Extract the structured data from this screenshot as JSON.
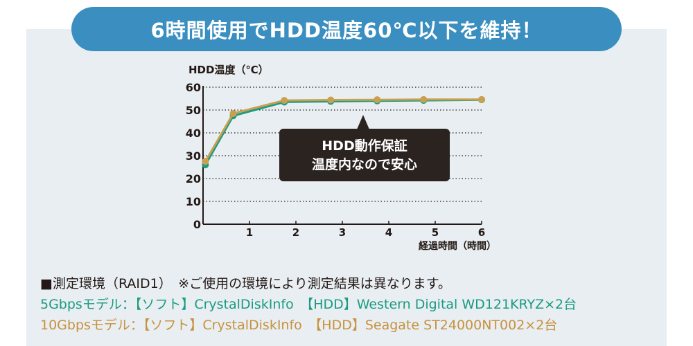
{
  "banner": {
    "title": "6時間使用でHDD温度60℃以下を維持！"
  },
  "callout": {
    "line1": "HDD動作保証",
    "line2": "温度内なので安心"
  },
  "colors": {
    "banner_bg": "#3a8fc0",
    "panel_bg": "#e8eef1",
    "series_5g": "#1a9b82",
    "series_10g": "#c8a050",
    "callout_bg": "#2b2320"
  },
  "chart_data": {
    "type": "line",
    "ylabel": "HDD温度（℃）",
    "xlabel": "経過時間（時間）",
    "ylim": [
      0,
      60
    ],
    "xlim": [
      0,
      6
    ],
    "yticks": [
      0,
      10,
      20,
      30,
      40,
      50,
      60
    ],
    "xticks": [
      1,
      2,
      3,
      4,
      5,
      6
    ],
    "grid": "horizontal-dotted",
    "legend": "none",
    "series": [
      {
        "color": "#1a9b82",
        "x": [
          0.05,
          0.65,
          1.75,
          2.75,
          3.75,
          4.75,
          6
        ],
        "y": [
          26,
          47.5,
          53.5,
          53.8,
          54,
          54.2,
          54.5
        ]
      },
      {
        "color": "#c8a050",
        "x": [
          0.05,
          0.65,
          1.75,
          2.75,
          3.75,
          4.75,
          6
        ],
        "y": [
          27.5,
          48.5,
          54.2,
          54.4,
          54.5,
          54.6,
          54.6
        ]
      }
    ]
  },
  "notes": {
    "environment": "■測定環境（RAID1）　※ご使用の環境により測定結果は異なります。",
    "model_5g": "5Gbpsモデル：【ソフト】CrystalDiskInfo　【HDD】Western Digital WD121KRYZ×2台",
    "model_10g": "10Gbpsモデル：【ソフト】CrystalDiskInfo　【HDD】Seagate ST24000NT002×2台"
  }
}
